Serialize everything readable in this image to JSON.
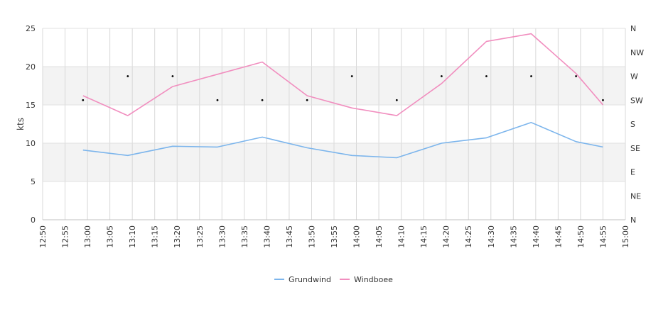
{
  "chart_data": {
    "type": "line",
    "ylabel": "kts",
    "ylim": [
      0,
      25
    ],
    "y_ticks": [
      "0",
      "5",
      "10",
      "15",
      "20",
      "25"
    ],
    "y2_ticks": [
      "N",
      "NE",
      "E",
      "SE",
      "S",
      "SW",
      "W",
      "NW",
      "N"
    ],
    "x_ticks": [
      "12:50",
      "12:55",
      "13:00",
      "13:05",
      "13:10",
      "13:15",
      "13:20",
      "13:25",
      "13:30",
      "13:35",
      "13:40",
      "13:45",
      "13:50",
      "13:55",
      "14:00",
      "14:05",
      "14:10",
      "14:15",
      "14:20",
      "14:25",
      "14:30",
      "14:35",
      "14:40",
      "14:45",
      "14:50",
      "14:55",
      "15:00"
    ],
    "x": [
      "12:59",
      "13:09",
      "13:19",
      "13:29",
      "13:39",
      "13:49",
      "13:59",
      "14:09",
      "14:19",
      "14:29",
      "14:39",
      "14:49",
      "14:55"
    ],
    "series": [
      {
        "name": "Grundwind",
        "color": "#7cb5ec",
        "values": [
          9.1,
          8.4,
          9.6,
          9.5,
          10.8,
          9.4,
          8.4,
          8.1,
          10.0,
          10.7,
          12.7,
          10.2,
          9.5
        ]
      },
      {
        "name": "Windboee",
        "color": "#f18ebf",
        "values": [
          16.2,
          13.6,
          17.4,
          19.0,
          20.6,
          16.2,
          14.6,
          13.6,
          17.8,
          23.3,
          24.3,
          19.1,
          15.0
        ]
      }
    ],
    "direction": {
      "x": [
        "12:59",
        "13:09",
        "13:19",
        "13:29",
        "13:39",
        "13:49",
        "13:59",
        "14:09",
        "14:19",
        "14:29",
        "14:39",
        "14:49",
        "14:55"
      ],
      "values": [
        "SW",
        "W",
        "W",
        "SW",
        "SW",
        "SW",
        "W",
        "SW",
        "W",
        "W",
        "W",
        "W",
        "SW"
      ]
    },
    "grid": true,
    "bands": [
      [
        5,
        10
      ],
      [
        15,
        20
      ]
    ],
    "legend": "bottom-center"
  }
}
